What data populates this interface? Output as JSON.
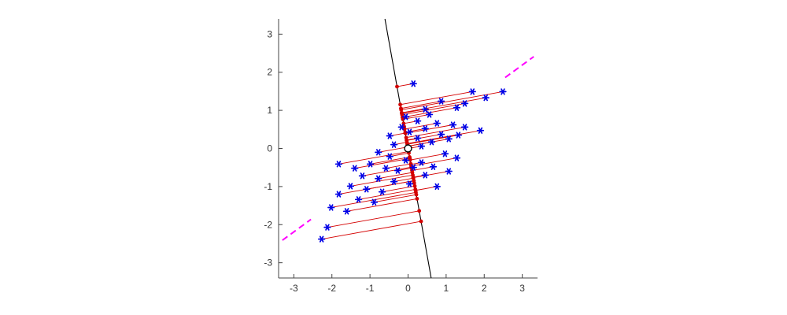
{
  "chart_data": {
    "type": "scatter",
    "title": "",
    "xlabel": "",
    "ylabel": "",
    "xlim": [
      -3.4,
      3.4
    ],
    "ylim": [
      -3.4,
      3.4
    ],
    "xticks": [
      -3,
      -2,
      -1,
      0,
      1,
      2,
      3
    ],
    "yticks": [
      -3,
      -2,
      -1,
      0,
      1,
      2,
      3
    ],
    "grid": false,
    "legend": "none",
    "colors": {
      "points": "#0000e6",
      "projection_segments": "#d40000",
      "projection_dots": "#d40000",
      "fitted_line": "#000000",
      "reference_line": "#ff00ff",
      "axis": "#444444",
      "tick_label": "#333333",
      "origin_fill": "#ffffff",
      "origin_edge": "#000000"
    },
    "fitted_line": {
      "description": "solid black line through origin onto which points are orthogonally projected",
      "slope": -5.6,
      "intercept": 0
    },
    "reference_line": {
      "description": "dashed magenta line through origin, drawn only outside the data cloud",
      "slope": 0.73,
      "intercept": 0,
      "style": "dashed",
      "segments_x": [
        [
          -3.3,
          -2.55
        ],
        [
          2.55,
          3.3
        ]
      ]
    },
    "origin_marker": {
      "x": 0,
      "y": 0,
      "style": "open-circle-white-fill-black-edge"
    },
    "projection_rule": "each red dot is the orthogonal projection of a blue point onto fitted_line; red segment joins the point to its projection",
    "series": [
      {
        "name": "data-points",
        "marker": "blue-asterisk",
        "points": [
          [
            0.14,
            1.7
          ],
          [
            1.69,
            1.49
          ],
          [
            2.49,
            1.49
          ],
          [
            2.04,
            1.33
          ],
          [
            0.87,
            1.24
          ],
          [
            1.49,
            1.18
          ],
          [
            1.28,
            1.07
          ],
          [
            0.45,
            1.03
          ],
          [
            0.56,
            0.89
          ],
          [
            -0.06,
            0.83
          ],
          [
            0.25,
            0.72
          ],
          [
            0.76,
            0.66
          ],
          [
            1.18,
            0.62
          ],
          [
            -0.17,
            0.56
          ],
          [
            1.49,
            0.56
          ],
          [
            0.45,
            0.52
          ],
          [
            1.9,
            0.47
          ],
          [
            0.04,
            0.43
          ],
          [
            0.87,
            0.37
          ],
          [
            1.32,
            0.35
          ],
          [
            -0.48,
            0.33
          ],
          [
            0.25,
            0.27
          ],
          [
            1.07,
            0.25
          ],
          [
            0.62,
            0.17
          ],
          [
            -0.37,
            0.1
          ],
          [
            0.35,
            0.06
          ],
          [
            0.97,
            -0.14
          ],
          [
            -0.78,
            -0.1
          ],
          [
            -0.48,
            -0.21
          ],
          [
            1.28,
            -0.25
          ],
          [
            -0.06,
            -0.31
          ],
          [
            0.35,
            -0.37
          ],
          [
            -0.99,
            -0.41
          ],
          [
            -1.82,
            -0.41
          ],
          [
            0.66,
            -0.48
          ],
          [
            -0.58,
            -0.52
          ],
          [
            -1.4,
            -0.52
          ],
          [
            0.14,
            -0.5
          ],
          [
            -0.27,
            -0.58
          ],
          [
            1.07,
            -0.6
          ],
          [
            0.45,
            -0.7
          ],
          [
            -1.2,
            -0.72
          ],
          [
            -0.78,
            -0.79
          ],
          [
            -0.37,
            -0.87
          ],
          [
            0.04,
            -0.93
          ],
          [
            -1.51,
            -0.99
          ],
          [
            0.76,
            -1.0
          ],
          [
            -1.09,
            -1.07
          ],
          [
            -0.68,
            -1.14
          ],
          [
            -1.82,
            -1.2
          ],
          [
            -1.3,
            -1.34
          ],
          [
            -0.89,
            -1.41
          ],
          [
            -2.02,
            -1.55
          ],
          [
            -1.61,
            -1.65
          ],
          [
            -2.12,
            -2.07
          ],
          [
            -2.27,
            -2.38
          ]
        ]
      },
      {
        "name": "projections",
        "marker": "red-dot",
        "derived": "computed from data-points via projection_rule"
      }
    ]
  }
}
